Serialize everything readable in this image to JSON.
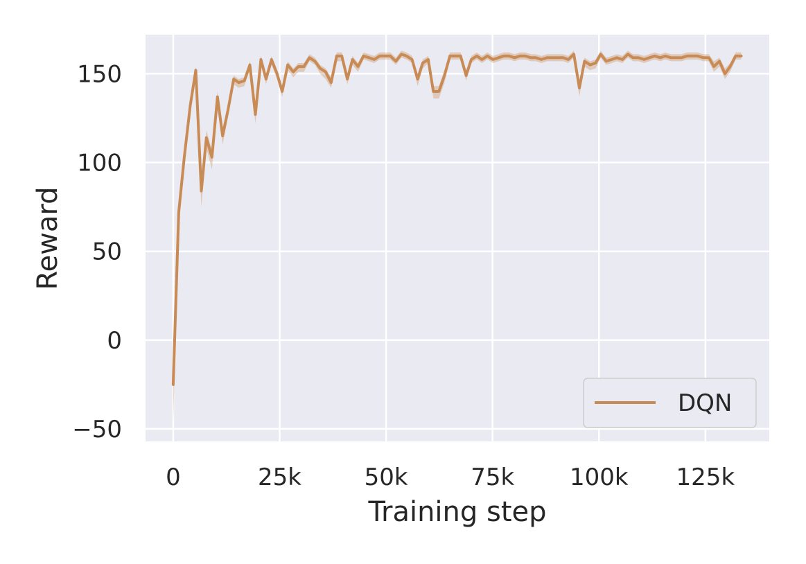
{
  "chart_data": {
    "type": "line",
    "title": "",
    "xlabel": "Training step",
    "ylabel": "Reward",
    "xlim": [
      -6500,
      140000
    ],
    "ylim": [
      -57,
      172
    ],
    "grid": true,
    "legend_placement": "bottom-right",
    "x_ticks": [
      {
        "value": 0,
        "label": "0"
      },
      {
        "value": 25000,
        "label": "25k"
      },
      {
        "value": 50000,
        "label": "50k"
      },
      {
        "value": 75000,
        "label": "75k"
      },
      {
        "value": 100000,
        "label": "100k"
      },
      {
        "value": 125000,
        "label": "125k"
      }
    ],
    "y_ticks": [
      {
        "value": -50,
        "label": "−50"
      },
      {
        "value": 0,
        "label": "0"
      },
      {
        "value": 50,
        "label": "50"
      },
      {
        "value": 100,
        "label": "100"
      },
      {
        "value": 150,
        "label": "150"
      }
    ],
    "series": [
      {
        "name": "DQN",
        "color": "#c98b55",
        "x": [
          0,
          1300,
          2600,
          4000,
          5300,
          6600,
          7800,
          9100,
          10400,
          11600,
          12900,
          14200,
          15400,
          16700,
          18000,
          19300,
          20600,
          21800,
          23100,
          24400,
          25600,
          26900,
          28200,
          29400,
          30700,
          32000,
          33300,
          34500,
          35800,
          37100,
          38400,
          39600,
          40900,
          42100,
          43400,
          44700,
          46000,
          47200,
          48500,
          49800,
          51000,
          52300,
          53600,
          54800,
          56100,
          57400,
          58600,
          59900,
          61100,
          62400,
          63700,
          65000,
          66200,
          67500,
          68800,
          70000,
          71300,
          72500,
          73800,
          75100,
          76400,
          77600,
          78900,
          80200,
          81400,
          82700,
          84000,
          85200,
          86500,
          87800,
          89000,
          90300,
          91600,
          92800,
          94100,
          95400,
          96600,
          97900,
          99200,
          100400,
          101700,
          103000,
          104200,
          105500,
          106800,
          108000,
          109300,
          110600,
          111800,
          113100,
          114400,
          115600,
          116900,
          118200,
          119400,
          120700,
          122000,
          123200,
          124500,
          125800,
          127000,
          128300,
          129600,
          130800,
          132100,
          133400
        ],
        "y": [
          -25,
          72,
          103,
          132,
          152,
          84,
          114,
          103,
          137,
          115,
          130,
          147,
          145,
          146,
          155,
          127,
          158,
          147,
          158,
          150,
          140,
          155,
          151,
          154,
          154,
          159,
          157,
          153,
          151,
          145,
          160,
          160,
          147,
          158,
          154,
          160,
          159,
          158,
          160,
          160,
          160,
          157,
          161,
          160,
          158,
          147,
          156,
          158,
          140,
          140,
          149,
          160,
          160,
          160,
          149,
          158,
          160,
          158,
          160,
          158,
          159,
          160,
          160,
          159,
          160,
          160,
          159,
          159,
          158,
          159,
          159,
          159,
          159,
          158,
          161,
          142,
          157,
          155,
          156,
          161,
          157,
          158,
          159,
          158,
          161,
          159,
          159,
          158,
          159,
          160,
          159,
          160,
          159,
          159,
          159,
          160,
          160,
          160,
          159,
          159,
          154,
          157,
          150,
          154,
          160,
          160
        ],
        "lower": [
          -47,
          68,
          100,
          128,
          149,
          75,
          108,
          96,
          133,
          110,
          126,
          144,
          142,
          143,
          152,
          122,
          155,
          144,
          155,
          147,
          137,
          152,
          148,
          151,
          151,
          157,
          155,
          150,
          147,
          142,
          157,
          157,
          144,
          155,
          151,
          158,
          157,
          156,
          158,
          158,
          158,
          155,
          159,
          158,
          156,
          143,
          153,
          156,
          136,
          136,
          145,
          158,
          158,
          158,
          146,
          156,
          158,
          156,
          158,
          156,
          157,
          158,
          158,
          157,
          158,
          158,
          157,
          157,
          156,
          157,
          157,
          157,
          157,
          156,
          159,
          137,
          154,
          152,
          153,
          159,
          155,
          156,
          157,
          156,
          159,
          157,
          157,
          156,
          157,
          158,
          157,
          158,
          157,
          157,
          157,
          158,
          158,
          158,
          157,
          157,
          151,
          154,
          147,
          151,
          158,
          158
        ],
        "upper": [
          -5,
          76,
          106,
          135,
          154,
          90,
          118,
          107,
          140,
          119,
          133,
          149,
          147,
          148,
          157,
          131,
          160,
          150,
          160,
          152,
          143,
          157,
          153,
          156,
          156,
          161,
          159,
          155,
          153,
          148,
          162,
          162,
          150,
          160,
          156,
          162,
          161,
          160,
          162,
          162,
          162,
          159,
          163,
          162,
          160,
          150,
          158,
          160,
          143,
          143,
          152,
          162,
          162,
          162,
          152,
          160,
          162,
          160,
          162,
          160,
          161,
          162,
          162,
          161,
          162,
          162,
          161,
          161,
          160,
          161,
          161,
          161,
          161,
          160,
          163,
          146,
          159,
          157,
          158,
          163,
          159,
          160,
          161,
          160,
          163,
          161,
          161,
          160,
          161,
          162,
          161,
          162,
          161,
          161,
          161,
          162,
          162,
          162,
          161,
          161,
          157,
          159,
          153,
          156,
          162,
          162
        ]
      }
    ]
  },
  "legend": {
    "label": "DQN"
  }
}
